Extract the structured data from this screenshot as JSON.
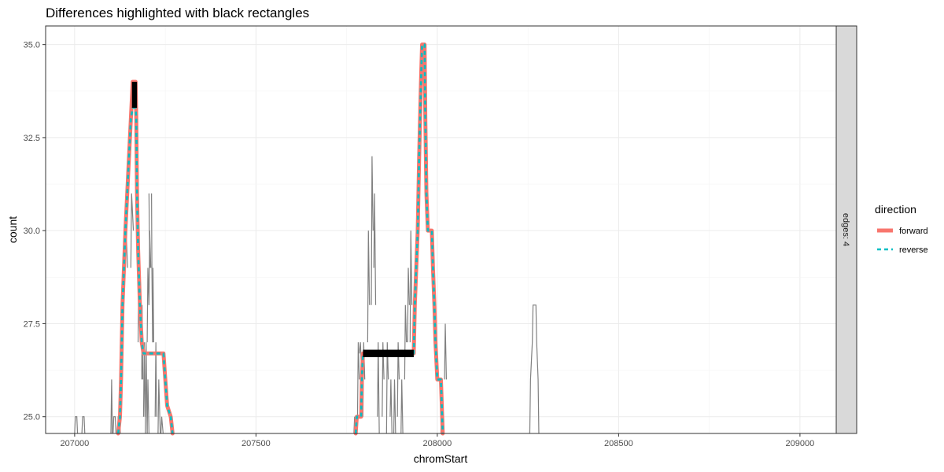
{
  "chart_data": {
    "type": "line",
    "title": "Differences highlighted with black rectangles",
    "xlabel": "chromStart",
    "ylabel": "count",
    "xlim": [
      206920,
      209100
    ],
    "ylim": [
      24.55,
      35.5
    ],
    "x_ticks": [
      207000,
      207500,
      208000,
      208500,
      209000
    ],
    "x_tick_labels": [
      "207000",
      "207500",
      "208000",
      "208500",
      "209000"
    ],
    "y_ticks": [
      25.0,
      27.5,
      30.0,
      32.5,
      35.0
    ],
    "y_tick_labels": [
      "25.0",
      "27.5",
      "30.0",
      "32.5",
      "35.0"
    ],
    "grid": true,
    "facet_label": "edges: 4",
    "legend": {
      "title": "direction",
      "position": "right",
      "entries": [
        {
          "label": "forward",
          "color": "#F8766D",
          "style": "solid"
        },
        {
          "label": "reverse",
          "color": "#00BFC4",
          "style": "dashed"
        }
      ]
    },
    "series": [
      {
        "name": "forward",
        "color": "#F8766D",
        "points": [
          [
            207120,
            24.55
          ],
          [
            207125,
            25
          ],
          [
            207128,
            26
          ],
          [
            207130,
            27
          ],
          [
            207132,
            28
          ],
          [
            207136,
            29
          ],
          [
            207140,
            30
          ],
          [
            207145,
            31
          ],
          [
            207150,
            32
          ],
          [
            207155,
            33
          ],
          [
            207160,
            34
          ],
          [
            207168,
            34
          ],
          [
            207170,
            33
          ],
          [
            207172,
            31
          ],
          [
            207175,
            29.5
          ],
          [
            207180,
            28
          ],
          [
            207185,
            27
          ],
          [
            207190,
            26.7
          ],
          [
            207245,
            26.7
          ],
          [
            207250,
            26
          ],
          [
            207255,
            25.3
          ],
          [
            207265,
            25
          ],
          [
            207270,
            24.55
          ]
        ]
      },
      {
        "name": "forward",
        "color": "#F8766D",
        "points": [
          [
            207775,
            24.55
          ],
          [
            207778,
            25
          ],
          [
            207790,
            25
          ],
          [
            207792,
            26
          ],
          [
            207795,
            26.7
          ],
          [
            207935,
            26.7
          ],
          [
            207938,
            28
          ],
          [
            207942,
            29
          ],
          [
            207946,
            30
          ],
          [
            207950,
            32
          ],
          [
            207955,
            34
          ],
          [
            207958,
            35
          ],
          [
            207965,
            35
          ],
          [
            207967,
            33
          ],
          [
            207970,
            31
          ],
          [
            207974,
            30
          ],
          [
            207985,
            30
          ],
          [
            207988,
            29
          ],
          [
            207992,
            28
          ],
          [
            207995,
            27
          ],
          [
            208000,
            26
          ],
          [
            208010,
            26
          ],
          [
            208015,
            24.55
          ]
        ]
      },
      {
        "name": "reverse",
        "color": "#00BFC4",
        "points": [
          [
            207120,
            24.55
          ],
          [
            207125,
            25
          ],
          [
            207128,
            26
          ],
          [
            207130,
            27
          ],
          [
            207132,
            28
          ],
          [
            207136,
            29
          ],
          [
            207140,
            30
          ],
          [
            207145,
            31
          ],
          [
            207150,
            32
          ],
          [
            207155,
            33
          ],
          [
            207160,
            33.3
          ],
          [
            207168,
            33.3
          ],
          [
            207170,
            33
          ],
          [
            207172,
            31
          ],
          [
            207175,
            29.5
          ],
          [
            207180,
            28
          ],
          [
            207185,
            27
          ],
          [
            207190,
            26.7
          ],
          [
            207245,
            26.7
          ],
          [
            207250,
            26
          ],
          [
            207255,
            25.3
          ],
          [
            207265,
            25
          ],
          [
            207270,
            24.55
          ]
        ]
      },
      {
        "name": "reverse",
        "color": "#00BFC4",
        "points": [
          [
            207775,
            24.55
          ],
          [
            207778,
            25
          ],
          [
            207790,
            25
          ],
          [
            207792,
            26
          ],
          [
            207795,
            26.7
          ],
          [
            207935,
            26.7
          ],
          [
            207938,
            28
          ],
          [
            207942,
            29
          ],
          [
            207946,
            30
          ],
          [
            207950,
            32
          ],
          [
            207955,
            34
          ],
          [
            207958,
            35
          ],
          [
            207965,
            35
          ],
          [
            207967,
            33
          ],
          [
            207970,
            31
          ],
          [
            207974,
            30
          ],
          [
            207985,
            30
          ],
          [
            207988,
            29
          ],
          [
            207992,
            28
          ],
          [
            207995,
            27
          ],
          [
            208000,
            26
          ],
          [
            208010,
            26
          ],
          [
            208015,
            24.55
          ]
        ]
      }
    ],
    "highlight_rectangles": [
      {
        "x0": 207158,
        "x1": 207172,
        "y0": 33.3,
        "y1": 34.0
      },
      {
        "x0": 207795,
        "x1": 207935,
        "y0": 26.6,
        "y1": 26.8
      }
    ],
    "gray_steps": [
      [
        [
          207000,
          24.55
        ],
        [
          207002,
          25
        ],
        [
          207006,
          25
        ],
        [
          207008,
          24.55
        ]
      ],
      [
        [
          207020,
          24.55
        ],
        [
          207022,
          25
        ],
        [
          207026,
          25
        ],
        [
          207028,
          24.55
        ]
      ],
      [
        [
          207100,
          24.55
        ],
        [
          207102,
          26
        ],
        [
          207104,
          24.55
        ]
      ],
      [
        [
          207106,
          24.55
        ],
        [
          207108,
          25
        ],
        [
          207112,
          25
        ],
        [
          207114,
          24.55
        ]
      ],
      [
        [
          207118,
          24.55
        ],
        [
          207120,
          25
        ],
        [
          207124,
          25
        ],
        [
          207126,
          24.55
        ]
      ],
      [
        [
          207140,
          29
        ],
        [
          207142,
          30
        ],
        [
          207146,
          29
        ]
      ],
      [
        [
          207155,
          29
        ],
        [
          207157,
          31
        ],
        [
          207162,
          30
        ]
      ],
      [
        [
          207175,
          27
        ],
        [
          207177,
          29
        ],
        [
          207180,
          28
        ]
      ],
      [
        [
          207185,
          26
        ],
        [
          207186,
          28
        ],
        [
          207188,
          26
        ]
      ],
      [
        [
          207190,
          25
        ],
        [
          207192,
          27
        ],
        [
          207194,
          25
        ]
      ],
      [
        [
          207195,
          24.55
        ],
        [
          207197,
          27
        ],
        [
          207200,
          24.55
        ]
      ],
      [
        [
          207200,
          27
        ],
        [
          207202,
          29
        ],
        [
          207205,
          28
        ]
      ],
      [
        [
          207205,
          28
        ],
        [
          207207,
          30
        ],
        [
          207210,
          29
        ]
      ],
      [
        [
          207215,
          27
        ],
        [
          207216,
          29
        ],
        [
          207218,
          27
        ]
      ],
      [
        [
          207222,
          25
        ],
        [
          207224,
          27
        ],
        [
          207226,
          25
        ]
      ],
      [
        [
          207230,
          24.55
        ],
        [
          207232,
          26
        ],
        [
          207236,
          24.55
        ]
      ],
      [
        [
          207238,
          24.55
        ],
        [
          207240,
          25
        ],
        [
          207244,
          24.55
        ]
      ],
      [
        [
          207200,
          24.55
        ],
        [
          207202,
          26
        ],
        [
          207205,
          24.55
        ]
      ],
      [
        [
          207205,
          31
        ],
        [
          207206,
          30
        ],
        [
          207208,
          29
        ]
      ],
      [
        [
          207212,
          31
        ],
        [
          207213,
          29
        ],
        [
          207215,
          27
        ]
      ],
      [
        [
          207770,
          24.55
        ],
        [
          207772,
          25
        ],
        [
          207776,
          24.55
        ]
      ],
      [
        [
          207780,
          25
        ],
        [
          207782,
          27
        ],
        [
          207785,
          26
        ]
      ],
      [
        [
          207785,
          26.7
        ],
        [
          207788,
          27
        ],
        [
          207792,
          26
        ]
      ],
      [
        [
          207795,
          25
        ],
        [
          207797,
          27
        ],
        [
          207800,
          26
        ]
      ],
      [
        [
          207808,
          27
        ],
        [
          207810,
          30
        ],
        [
          207813,
          28
        ]
      ],
      [
        [
          207818,
          28
        ],
        [
          207820,
          32
        ],
        [
          207823,
          30
        ]
      ],
      [
        [
          207825,
          29
        ],
        [
          207827,
          31
        ],
        [
          207830,
          28
        ]
      ],
      [
        [
          207835,
          25
        ],
        [
          207837,
          27
        ],
        [
          207840,
          24.55
        ]
      ],
      [
        [
          207848,
          25
        ],
        [
          207850,
          27
        ],
        [
          207853,
          26
        ]
      ],
      [
        [
          207860,
          24.55
        ],
        [
          207862,
          27
        ],
        [
          207865,
          26
        ]
      ],
      [
        [
          207870,
          25
        ],
        [
          207872,
          26
        ],
        [
          207875,
          24.55
        ]
      ],
      [
        [
          207880,
          24.55
        ],
        [
          207882,
          26
        ],
        [
          207885,
          24.55
        ]
      ],
      [
        [
          207890,
          25
        ],
        [
          207892,
          27
        ],
        [
          207895,
          26
        ]
      ],
      [
        [
          207900,
          24.55
        ],
        [
          207902,
          26
        ],
        [
          207905,
          24.55
        ]
      ],
      [
        [
          207910,
          26
        ],
        [
          207912,
          28
        ],
        [
          207915,
          27
        ]
      ],
      [
        [
          207918,
          27
        ],
        [
          207920,
          29
        ],
        [
          207923,
          28
        ]
      ],
      [
        [
          207925,
          27
        ],
        [
          207927,
          30
        ],
        [
          207930,
          28
        ]
      ],
      [
        [
          208010,
          24.55
        ],
        [
          208012,
          26
        ],
        [
          208015,
          24.55
        ]
      ],
      [
        [
          208020,
          26
        ],
        [
          208022,
          27.5
        ],
        [
          208025,
          26
        ]
      ],
      [
        [
          208255,
          24.55
        ],
        [
          208257,
          26
        ],
        [
          208262,
          27
        ],
        [
          208264,
          28
        ],
        [
          208272,
          28
        ],
        [
          208274,
          27
        ],
        [
          208278,
          26
        ],
        [
          208280,
          24.55
        ]
      ]
    ]
  }
}
